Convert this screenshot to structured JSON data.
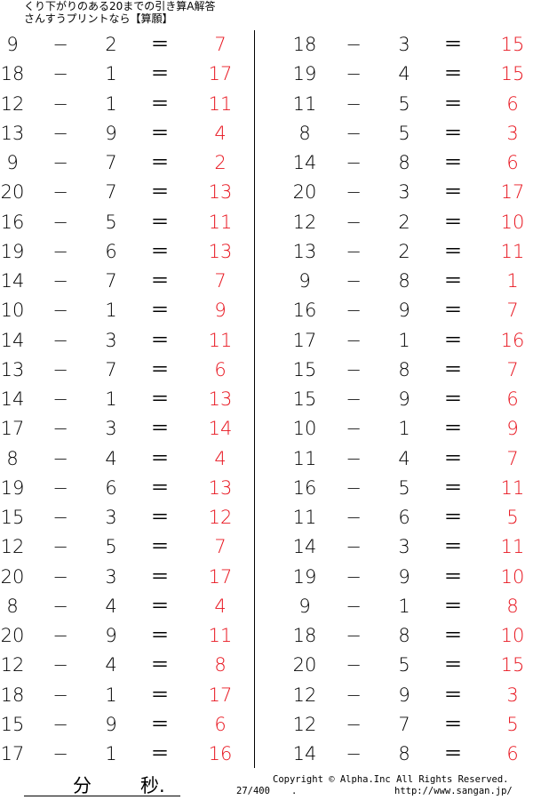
{
  "header": {
    "title": "くり下がりのある20までの引き算A解答",
    "subtitle": "さんすうプリントなら【算願】"
  },
  "colors": {
    "answer": "#e8141e",
    "text": "#000000"
  },
  "symbols": {
    "minus": "−",
    "equals": "＝"
  },
  "left_column": [
    [
      "9",
      "2",
      "7"
    ],
    [
      "18",
      "1",
      "17"
    ],
    [
      "12",
      "1",
      "11"
    ],
    [
      "13",
      "9",
      "4"
    ],
    [
      "9",
      "7",
      "2"
    ],
    [
      "20",
      "7",
      "13"
    ],
    [
      "16",
      "5",
      "11"
    ],
    [
      "19",
      "6",
      "13"
    ],
    [
      "14",
      "7",
      "7"
    ],
    [
      "10",
      "1",
      "9"
    ],
    [
      "14",
      "3",
      "11"
    ],
    [
      "13",
      "7",
      "6"
    ],
    [
      "14",
      "1",
      "13"
    ],
    [
      "17",
      "3",
      "14"
    ],
    [
      "8",
      "4",
      "4"
    ],
    [
      "19",
      "6",
      "13"
    ],
    [
      "15",
      "3",
      "12"
    ],
    [
      "12",
      "5",
      "7"
    ],
    [
      "20",
      "3",
      "17"
    ],
    [
      "8",
      "4",
      "4"
    ],
    [
      "20",
      "9",
      "11"
    ],
    [
      "12",
      "4",
      "8"
    ],
    [
      "18",
      "1",
      "17"
    ],
    [
      "15",
      "9",
      "6"
    ],
    [
      "17",
      "1",
      "16"
    ]
  ],
  "right_column": [
    [
      "18",
      "3",
      "15"
    ],
    [
      "19",
      "4",
      "15"
    ],
    [
      "11",
      "5",
      "6"
    ],
    [
      "8",
      "5",
      "3"
    ],
    [
      "14",
      "8",
      "6"
    ],
    [
      "20",
      "3",
      "17"
    ],
    [
      "12",
      "2",
      "10"
    ],
    [
      "13",
      "2",
      "11"
    ],
    [
      "9",
      "8",
      "1"
    ],
    [
      "16",
      "9",
      "7"
    ],
    [
      "17",
      "1",
      "16"
    ],
    [
      "15",
      "8",
      "7"
    ],
    [
      "15",
      "9",
      "6"
    ],
    [
      "10",
      "1",
      "9"
    ],
    [
      "11",
      "4",
      "7"
    ],
    [
      "16",
      "5",
      "11"
    ],
    [
      "11",
      "6",
      "5"
    ],
    [
      "14",
      "3",
      "11"
    ],
    [
      "19",
      "9",
      "10"
    ],
    [
      "9",
      "1",
      "8"
    ],
    [
      "18",
      "8",
      "10"
    ],
    [
      "20",
      "5",
      "15"
    ],
    [
      "12",
      "9",
      "3"
    ],
    [
      "12",
      "7",
      "5"
    ],
    [
      "14",
      "8",
      "6"
    ]
  ],
  "footer": {
    "minutes_label": "分",
    "seconds_label": "秒.",
    "page": "27/400",
    "dot": ".",
    "copyright": "Copyright ©  Alpha.Inc All Rights Reserved.",
    "url": "http://www.sangan.jp/"
  }
}
